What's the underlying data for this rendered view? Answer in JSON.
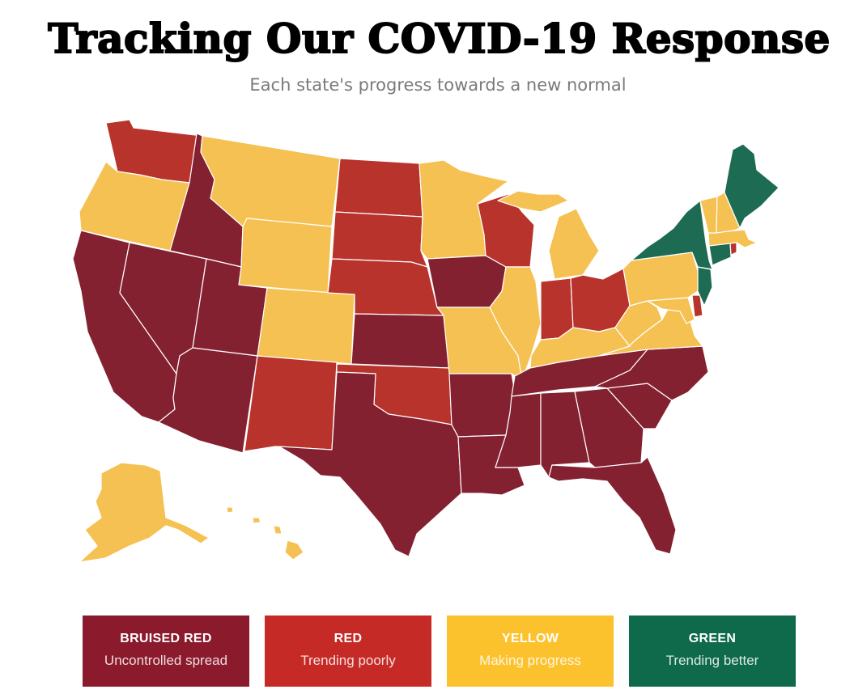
{
  "header": {
    "title": "Tracking Our COVID-19 Response",
    "subtitle": "Each state's progress towards a new normal"
  },
  "colors": {
    "bruised_red": "#842131",
    "red": "#b7332c",
    "yellow": "#f5c152",
    "green": "#1e6b54",
    "legend_bruised_red": "#8b1a2c",
    "legend_red": "#c52a26",
    "legend_yellow": "#fcc22d",
    "legend_green": "#0f6a4c"
  },
  "states": {
    "WA": "red",
    "OR": "yellow",
    "CA": "bruised_red",
    "NV": "bruised_red",
    "ID": "bruised_red",
    "MT": "yellow",
    "WY": "yellow",
    "UT": "bruised_red",
    "AZ": "bruised_red",
    "CO": "yellow",
    "NM": "red",
    "ND": "red",
    "SD": "red",
    "NE": "red",
    "KS": "bruised_red",
    "OK": "red",
    "TX": "bruised_red",
    "MN": "yellow",
    "IA": "bruised_red",
    "MO": "yellow",
    "AR": "bruised_red",
    "LA": "bruised_red",
    "WI": "red",
    "IL": "yellow",
    "MI": "yellow",
    "IN": "red",
    "OH": "red",
    "KY": "yellow",
    "TN": "bruised_red",
    "MS": "bruised_red",
    "AL": "bruised_red",
    "GA": "bruised_red",
    "FL": "bruised_red",
    "SC": "bruised_red",
    "NC": "bruised_red",
    "VA": "yellow",
    "WV": "yellow",
    "PA": "yellow",
    "NY": "green",
    "ME": "green",
    "VT": "yellow",
    "NH": "yellow",
    "MA": "yellow",
    "CT": "green",
    "RI": "red",
    "NJ": "green",
    "DE": "red",
    "MD": "yellow",
    "AK": "yellow",
    "HI": "yellow"
  },
  "legend": [
    {
      "key": "bruised_red",
      "title": "BRUISED RED",
      "desc": "Uncontrolled spread"
    },
    {
      "key": "red",
      "title": "RED",
      "desc": "Trending poorly"
    },
    {
      "key": "yellow",
      "title": "YELLOW",
      "desc": "Making progress"
    },
    {
      "key": "green",
      "title": "GREEN",
      "desc": "Trending better"
    }
  ]
}
